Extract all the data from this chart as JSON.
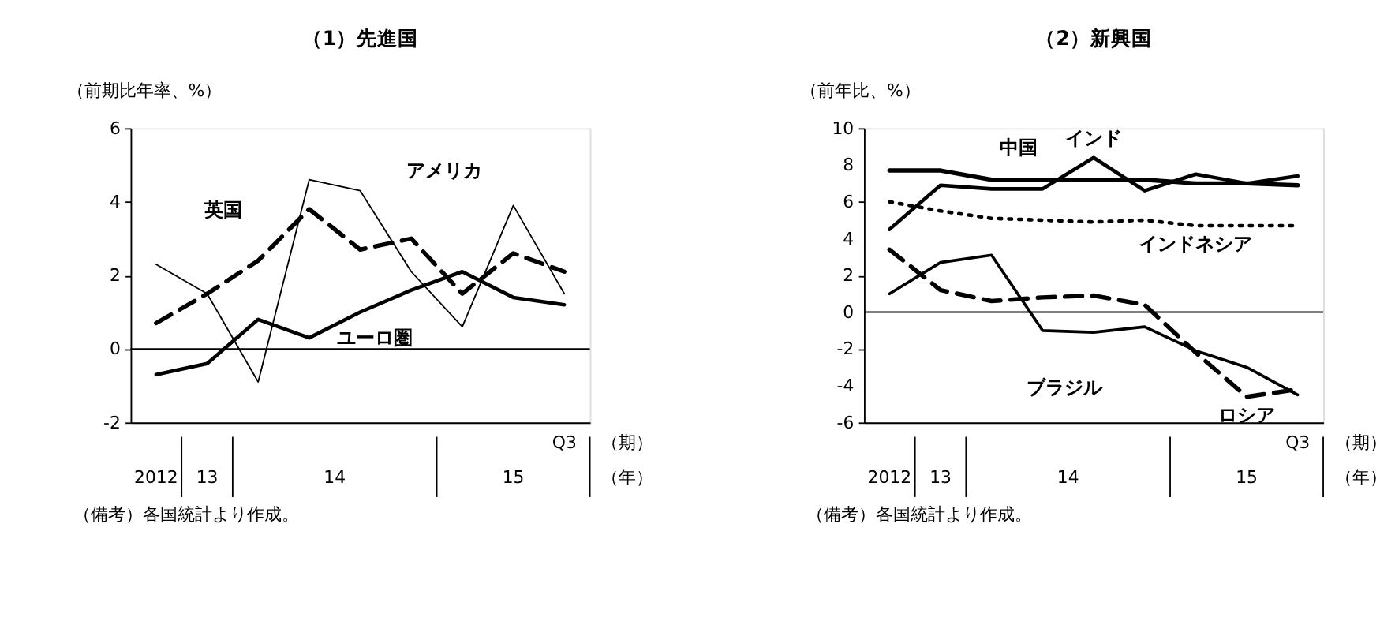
{
  "chart_data": [
    {
      "type": "line",
      "title": "（1）先進国",
      "ylabel": "（前期比年率、%）",
      "categories": [
        null,
        null,
        null,
        null,
        null,
        null,
        null,
        null,
        null
      ],
      "ylim": [
        -2,
        6
      ],
      "yticks": [
        -2,
        0,
        2,
        4,
        6
      ],
      "grid": false,
      "legend": false,
      "marker": "none",
      "ref_lines": [
        {
          "axis": "y",
          "value": 0,
          "label": null,
          "color": "#000000"
        }
      ],
      "annotations": [
        "2012",
        "13",
        "14",
        "15",
        "Q3",
        "（期）",
        "（年）",
        "（備考）各国統計より作成。"
      ],
      "series": [
        {
          "name": "アメリカ",
          "color": "#000000",
          "line_style": "solid",
          "values": [
            2.3,
            1.5,
            -0.9,
            4.6,
            4.3,
            2.1,
            0.6,
            3.9,
            1.5
          ]
        },
        {
          "name": "英国",
          "color": "#000000",
          "line_style": "dashed",
          "values": [
            0.7,
            1.5,
            2.4,
            3.8,
            2.7,
            3.0,
            1.5,
            2.6,
            2.1
          ]
        },
        {
          "name": "ユーロ圏",
          "color": "#000000",
          "line_style": "solid",
          "values": [
            -0.7,
            -0.4,
            0.8,
            0.3,
            1.0,
            1.6,
            2.1,
            1.4,
            1.2
          ]
        }
      ]
    },
    {
      "type": "line",
      "title": "（2）新興国",
      "ylabel": "（前年比、%）",
      "categories": [
        null,
        null,
        null,
        null,
        null,
        null,
        null,
        null,
        null
      ],
      "ylim": [
        -6,
        10
      ],
      "yticks": [
        -6,
        -4,
        -2,
        0,
        2,
        4,
        6,
        8,
        10
      ],
      "grid": false,
      "legend": false,
      "marker": "none",
      "ref_lines": [
        {
          "axis": "y",
          "value": 0,
          "label": null,
          "color": "#000000"
        }
      ],
      "annotations": [
        "2012",
        "13",
        "14",
        "15",
        "Q3",
        "（期）",
        "（年）",
        "（備考）各国統計より作成。"
      ],
      "series": [
        {
          "name": "中国",
          "color": "#000000",
          "line_style": "solid",
          "values": [
            7.7,
            7.7,
            7.2,
            7.2,
            7.2,
            7.2,
            7.0,
            7.0,
            6.9
          ]
        },
        {
          "name": "インド",
          "color": "#000000",
          "line_style": "solid",
          "values": [
            4.5,
            6.9,
            6.7,
            6.7,
            8.4,
            6.6,
            7.5,
            7.0,
            7.4
          ]
        },
        {
          "name": "インドネシア",
          "color": "#000000",
          "line_style": "dotted",
          "values": [
            6.0,
            5.5,
            5.1,
            5.0,
            4.9,
            5.0,
            4.7,
            4.7,
            4.7
          ]
        },
        {
          "name": "ブラジル",
          "color": "#000000",
          "line_style": "solid",
          "values": [
            1.0,
            2.7,
            3.1,
            -1.0,
            -1.1,
            -0.8,
            -2.1,
            -3.0,
            -4.5
          ]
        },
        {
          "name": "ロシア",
          "color": "#000000",
          "line_style": "dashed",
          "values": [
            3.4,
            1.2,
            0.6,
            0.8,
            0.9,
            0.4,
            -2.2,
            -4.6,
            -4.2
          ]
        }
      ]
    }
  ]
}
